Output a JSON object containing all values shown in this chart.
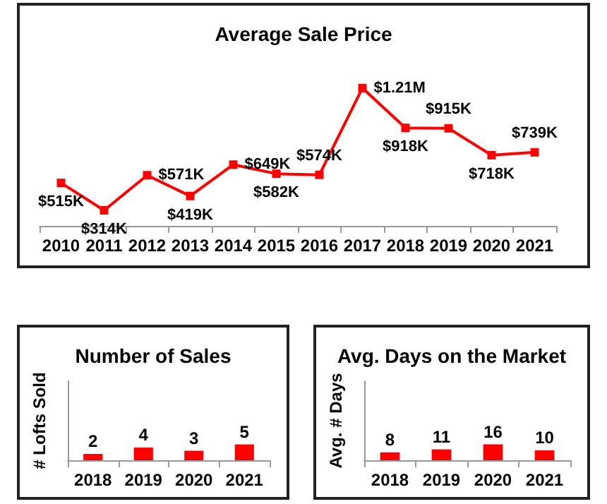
{
  "chart_data": [
    {
      "type": "line",
      "title": "Average Sale Price",
      "categories": [
        "2010",
        "2011",
        "2012",
        "2013",
        "2014",
        "2015",
        "2016",
        "2017",
        "2018",
        "2019",
        "2020",
        "2021"
      ],
      "series": [
        {
          "color": "#ff0000",
          "values": [
            515000,
            314000,
            571000,
            419000,
            649000,
            582000,
            574000,
            1210000,
            918000,
            915000,
            718000,
            739000
          ],
          "value_labels": [
            "$515K",
            "$314K",
            "$571K",
            "$419K",
            "$649K",
            "$582K",
            "$574K",
            "$1.21M",
            "$918K",
            "$915K",
            "$718K",
            "$739K"
          ]
        }
      ],
      "marker": "square",
      "tick_labels": "x",
      "grid": false
    },
    {
      "type": "bar",
      "title": "Number of Sales",
      "ylabel": "# Lofts Sold",
      "categories": [
        "2018",
        "2019",
        "2020",
        "2021"
      ],
      "values": [
        2,
        4,
        3,
        5
      ],
      "color": "#ff0000",
      "data_labels": true,
      "tick_labels": "x",
      "grid": false
    },
    {
      "type": "bar",
      "title": "Avg. Days on the Market",
      "ylabel": "Avg. # Days",
      "categories": [
        "2018",
        "2019",
        "2020",
        "2021"
      ],
      "values": [
        8,
        11,
        16,
        10
      ],
      "color": "#ff0000",
      "data_labels": true,
      "tick_labels": "x",
      "grid": false
    }
  ]
}
